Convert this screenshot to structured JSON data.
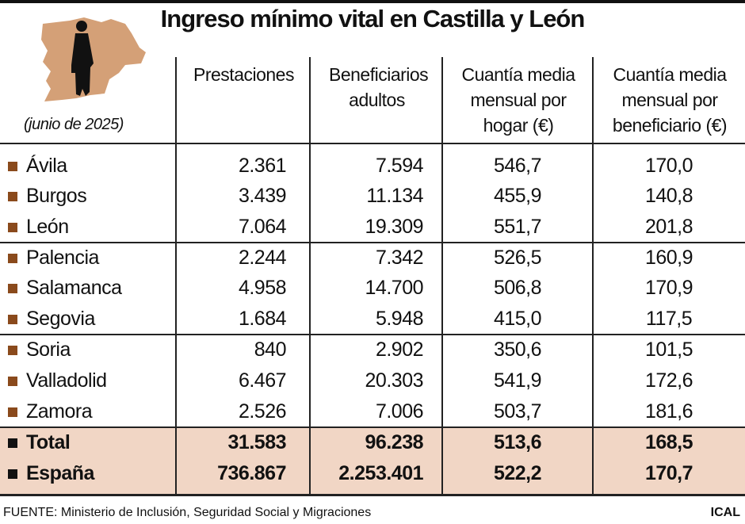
{
  "chart_data": {
    "type": "table",
    "title": "Ingreso mínimo vital en Castilla y León",
    "subtitle": "(junio de 2025)",
    "columns": [
      "Prestaciones",
      "Beneficiarios adultos",
      "Cuantía media mensual por hogar (€)",
      "Cuantía media mensual por beneficiario (€)"
    ],
    "rows": [
      {
        "name": "Ávila",
        "values": [
          "2.361",
          "7.594",
          "546,7",
          "170,0"
        ]
      },
      {
        "name": "Burgos",
        "values": [
          "3.439",
          "11.134",
          "455,9",
          "140,8"
        ]
      },
      {
        "name": "León",
        "values": [
          "7.064",
          "19.309",
          "551,7",
          "201,8"
        ]
      },
      {
        "name": "Palencia",
        "values": [
          "2.244",
          "7.342",
          "526,5",
          "160,9"
        ]
      },
      {
        "name": "Salamanca",
        "values": [
          "4.958",
          "14.700",
          "506,8",
          "170,9"
        ]
      },
      {
        "name": "Segovia",
        "values": [
          "1.684",
          "5.948",
          "415,0",
          "117,5"
        ]
      },
      {
        "name": "Soria",
        "values": [
          "840",
          "2.902",
          "350,6",
          "101,5"
        ]
      },
      {
        "name": "Valladolid",
        "values": [
          "6.467",
          "20.303",
          "541,9",
          "172,6"
        ]
      },
      {
        "name": "Zamora",
        "values": [
          "2.526",
          "7.006",
          "503,7",
          "181,6"
        ]
      },
      {
        "name": "Total",
        "values": [
          "31.583",
          "96.238",
          "513,6",
          "168,5"
        ],
        "highlight": true
      },
      {
        "name": "España",
        "values": [
          "736.867",
          "2.253.401",
          "522,2",
          "170,7"
        ],
        "highlight": true
      }
    ],
    "colors": {
      "bullet": "#8a4a1c",
      "highlight_bg": "#f1d6c5",
      "map": "#d4a077"
    }
  },
  "footer": {
    "source": "FUENTE: Ministerio de Inclusión, Seguridad Social y Migraciones",
    "brand": "ICAL"
  },
  "icons": {
    "logo": "castilla-leon-map-with-person-silhouette"
  }
}
